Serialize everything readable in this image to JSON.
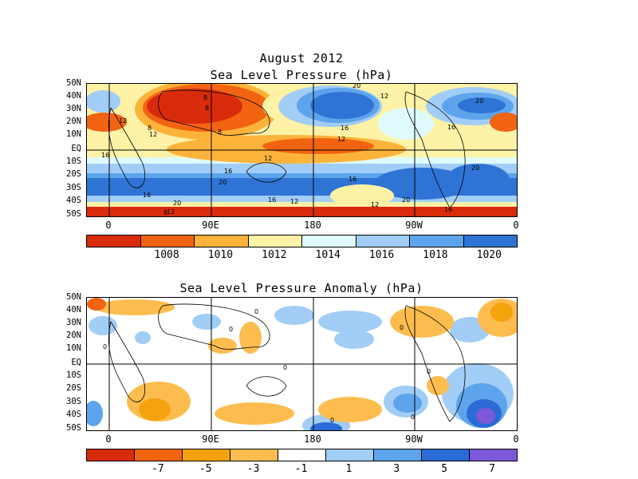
{
  "top": {
    "title_line1": "August 2012",
    "title_line2": "Sea Level Pressure (hPa)",
    "lat_labels": [
      "50N",
      "40N",
      "30N",
      "20N",
      "10N",
      "EQ",
      "10S",
      "20S",
      "30S",
      "40S",
      "50S"
    ],
    "lon_labels": [
      "0",
      "90E",
      "180",
      "90W",
      "0"
    ],
    "colorbar": {
      "colors": [
        "#d82b0c",
        "#f26412",
        "#fdb33a",
        "#fdf2a6",
        "#e0fbfd",
        "#a1cdf6",
        "#5da4ec",
        "#2f74d4"
      ],
      "labels": [
        "1008",
        "1010",
        "1012",
        "1014",
        "1016",
        "1018",
        "1020"
      ]
    },
    "contour_labels": [
      "20",
      "12",
      "20",
      "16",
      "12",
      "16",
      "12",
      "16",
      "8",
      "8",
      "8",
      "8",
      "12",
      "20",
      "16",
      "20",
      "16",
      "12",
      "16",
      "20",
      "16",
      "12",
      "12",
      "8",
      "16",
      "20",
      "12"
    ]
  },
  "bottom": {
    "title": "Sea Level Pressure Anomaly (hPa)",
    "lat_labels": [
      "50N",
      "40N",
      "30N",
      "20N",
      "10N",
      "EQ",
      "10S",
      "20S",
      "30S",
      "40S",
      "50S"
    ],
    "lon_labels": [
      "0",
      "90E",
      "180",
      "90W",
      "0"
    ],
    "colorbar": {
      "colors": [
        "#d82b0c",
        "#f26412",
        "#f5a20f",
        "#fdbd4e",
        "#ffffff",
        "#a1cdf6",
        "#5da4ec",
        "#2a6bd6",
        "#7b59d9"
      ],
      "labels": [
        "-7",
        "-5",
        "-3",
        "-1",
        "1",
        "3",
        "5",
        "7"
      ]
    },
    "contour_labels": [
      "0",
      "0",
      "0",
      "0",
      "0",
      "0",
      "0",
      "0"
    ]
  }
}
